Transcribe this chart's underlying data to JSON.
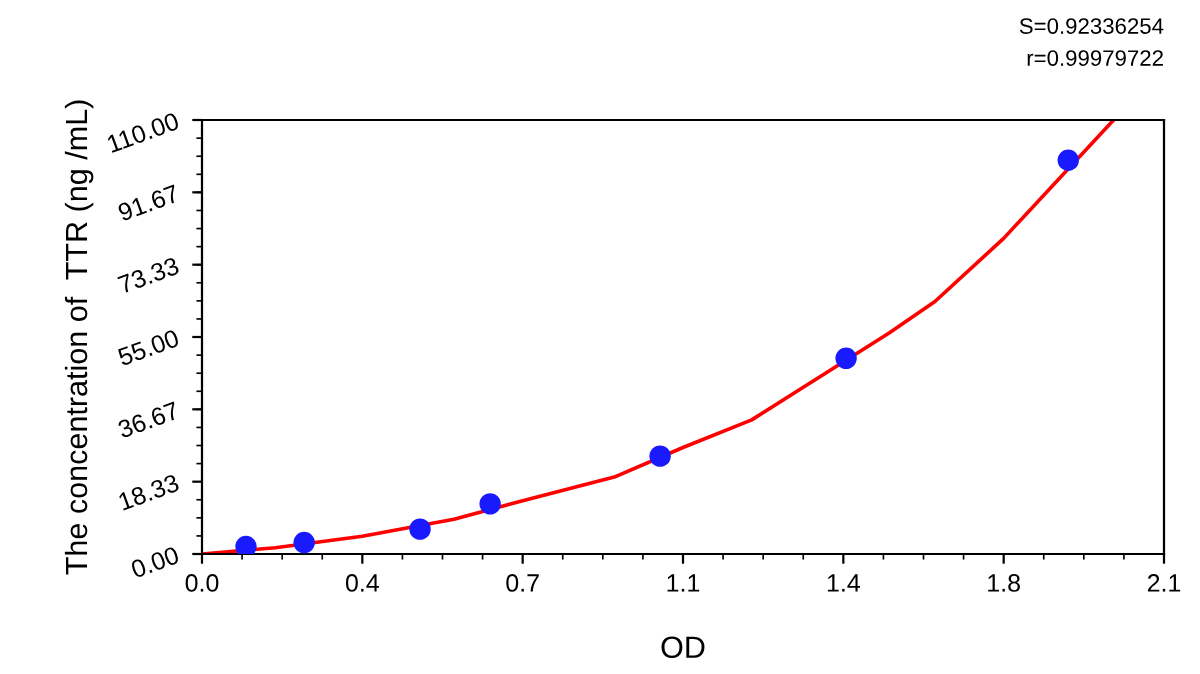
{
  "chart_data": {
    "type": "scatter",
    "xlabel": "OD",
    "ylabel": "The concentration of  TTR (ng /mL)",
    "annotations": [
      "S=0.92336254",
      "r=0.99979722"
    ],
    "xlim": [
      0,
      2.1
    ],
    "xticks": [
      {
        "value": 0,
        "label": "0.0"
      },
      {
        "value": 0.35,
        "label": "0.4"
      },
      {
        "value": 0.7,
        "label": "0.7"
      },
      {
        "value": 1.05,
        "label": "1.1"
      },
      {
        "value": 1.4,
        "label": "1.4"
      },
      {
        "value": 1.75,
        "label": "1.8"
      },
      {
        "value": 2.1,
        "label": "2.1"
      }
    ],
    "ylim": [
      0,
      110
    ],
    "yticks": [
      {
        "value": 0,
        "label": "0.00"
      },
      {
        "value": 18.33,
        "label": "18.33"
      },
      {
        "value": 36.67,
        "label": "36.67"
      },
      {
        "value": 55,
        "label": "55.00"
      },
      {
        "value": 73.33,
        "label": "73.33"
      },
      {
        "value": 91.67,
        "label": "91.67"
      },
      {
        "value": 110,
        "label": "110.00"
      }
    ],
    "grid": false,
    "legend": false,
    "series": [
      {
        "type": "line",
        "color": "#ff0000",
        "x": [
          0,
          0.16,
          0.35,
          0.55,
          0.7,
          0.9,
          1.05,
          1.2,
          1.5,
          1.6,
          1.75,
          1.99
        ],
        "values": [
          0,
          1.6,
          4.5,
          8.8,
          13.5,
          19.5,
          27,
          34,
          56,
          64,
          80,
          110
        ]
      },
      {
        "color": "#1a1aff",
        "marker": "circle",
        "x": [
          0.096,
          0.223,
          0.476,
          0.629,
          1.0,
          1.406,
          1.891
        ],
        "values": [
          1.9,
          2.9,
          6.3,
          12.7,
          24.8,
          49.6,
          99.8
        ]
      }
    ]
  }
}
